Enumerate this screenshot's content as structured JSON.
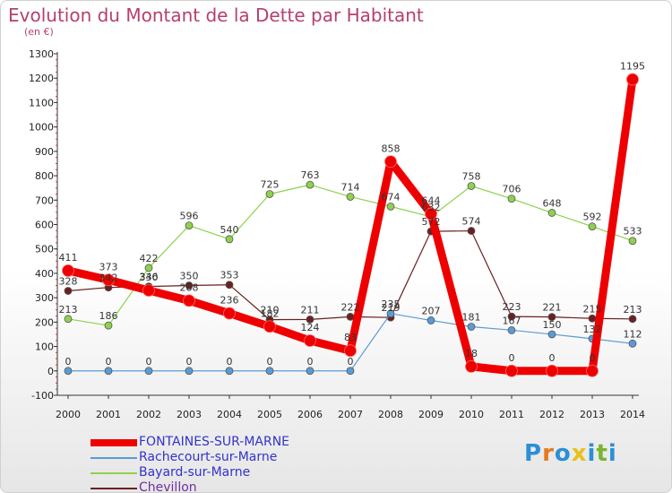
{
  "title": "Evolution du Montant de la Dette par Habitant",
  "subtitle": "(en €)",
  "logo": {
    "letters": [
      "P",
      "r",
      "o",
      "x",
      "i",
      "t",
      "i"
    ],
    "colors": [
      "#2a8fd6",
      "#e8791b",
      "#2a8fd6",
      "#e8c21b",
      "#2a8fd6",
      "#7ab52e",
      "#2a8fd6"
    ]
  },
  "chart_data": {
    "type": "line",
    "title": "Evolution du Montant de la Dette par Habitant",
    "ylabel": "(en €)",
    "ylim": [
      -100,
      1300
    ],
    "yticks": [
      -100,
      0,
      100,
      200,
      300,
      400,
      500,
      600,
      700,
      800,
      900,
      1000,
      1100,
      1200,
      1300
    ],
    "categories": [
      "2000",
      "2001",
      "2002",
      "2003",
      "2004",
      "2005",
      "2006",
      "2007",
      "2008",
      "2009",
      "2010",
      "2011",
      "2012",
      "2013",
      "2014"
    ],
    "grid": false,
    "legend": "bottom-left",
    "series": [
      {
        "name": "Chevillon",
        "color": "#6b2020",
        "width": 1.2,
        "marker": 4,
        "values": [
          328,
          342,
          346,
          350,
          353,
          210,
          211,
          222,
          219,
          572,
          574,
          223,
          221,
          215,
          213
        ]
      },
      {
        "name": "Bayard-sur-Marne",
        "color": "#8fd14f",
        "width": 1.2,
        "marker": 4,
        "values": [
          213,
          186,
          422,
          596,
          540,
          725,
          763,
          714,
          674,
          632,
          758,
          706,
          648,
          592,
          533
        ]
      },
      {
        "name": "Rachecourt-sur-Marne",
        "color": "#5b9bd5",
        "width": 1.2,
        "marker": 4,
        "values": [
          0,
          0,
          0,
          0,
          0,
          0,
          0,
          0,
          235,
          207,
          181,
          167,
          150,
          132,
          112
        ]
      },
      {
        "name": "FONTAINES-SUR-MARNE",
        "color": "#ee0000",
        "width": 9,
        "marker": 6.5,
        "values": [
          411,
          373,
          330,
          288,
          236,
          182,
          124,
          83,
          858,
          644,
          18,
          0,
          0,
          0,
          1195
        ]
      }
    ]
  },
  "legend_order": [
    3,
    2,
    1,
    0
  ]
}
